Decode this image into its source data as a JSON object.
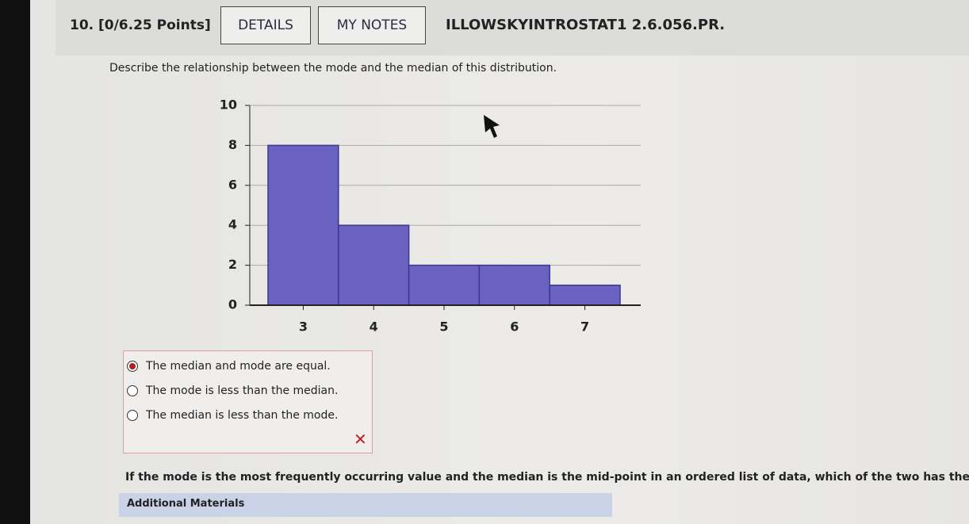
{
  "header": {
    "number": "10.",
    "points": "[0/6.25 Points]",
    "buttons": [
      "DETAILS",
      "MY NOTES"
    ],
    "code": "ILLOWSKYINTROSTAT1 2.6.056.PR."
  },
  "question": "Describe the relationship between the mode and the median of this distribution.",
  "chart_data": {
    "type": "bar",
    "categories": [
      "3",
      "4",
      "5",
      "6",
      "7"
    ],
    "values": [
      8,
      4,
      2,
      2,
      1
    ],
    "color": "#6a62c0",
    "ylim": [
      0,
      10
    ],
    "yticks": [
      0,
      2,
      4,
      6,
      8,
      10
    ],
    "grid": true
  },
  "options": {
    "items": [
      "The median and mode are equal.",
      "The mode is less than the median.",
      "The median is less than the mode."
    ],
    "selected": 0
  },
  "next_question": "If the mode is the most frequently occurring value and the median is the mid-point in an ordered list of data, which of the two has the high",
  "additional": "Additional Materials"
}
